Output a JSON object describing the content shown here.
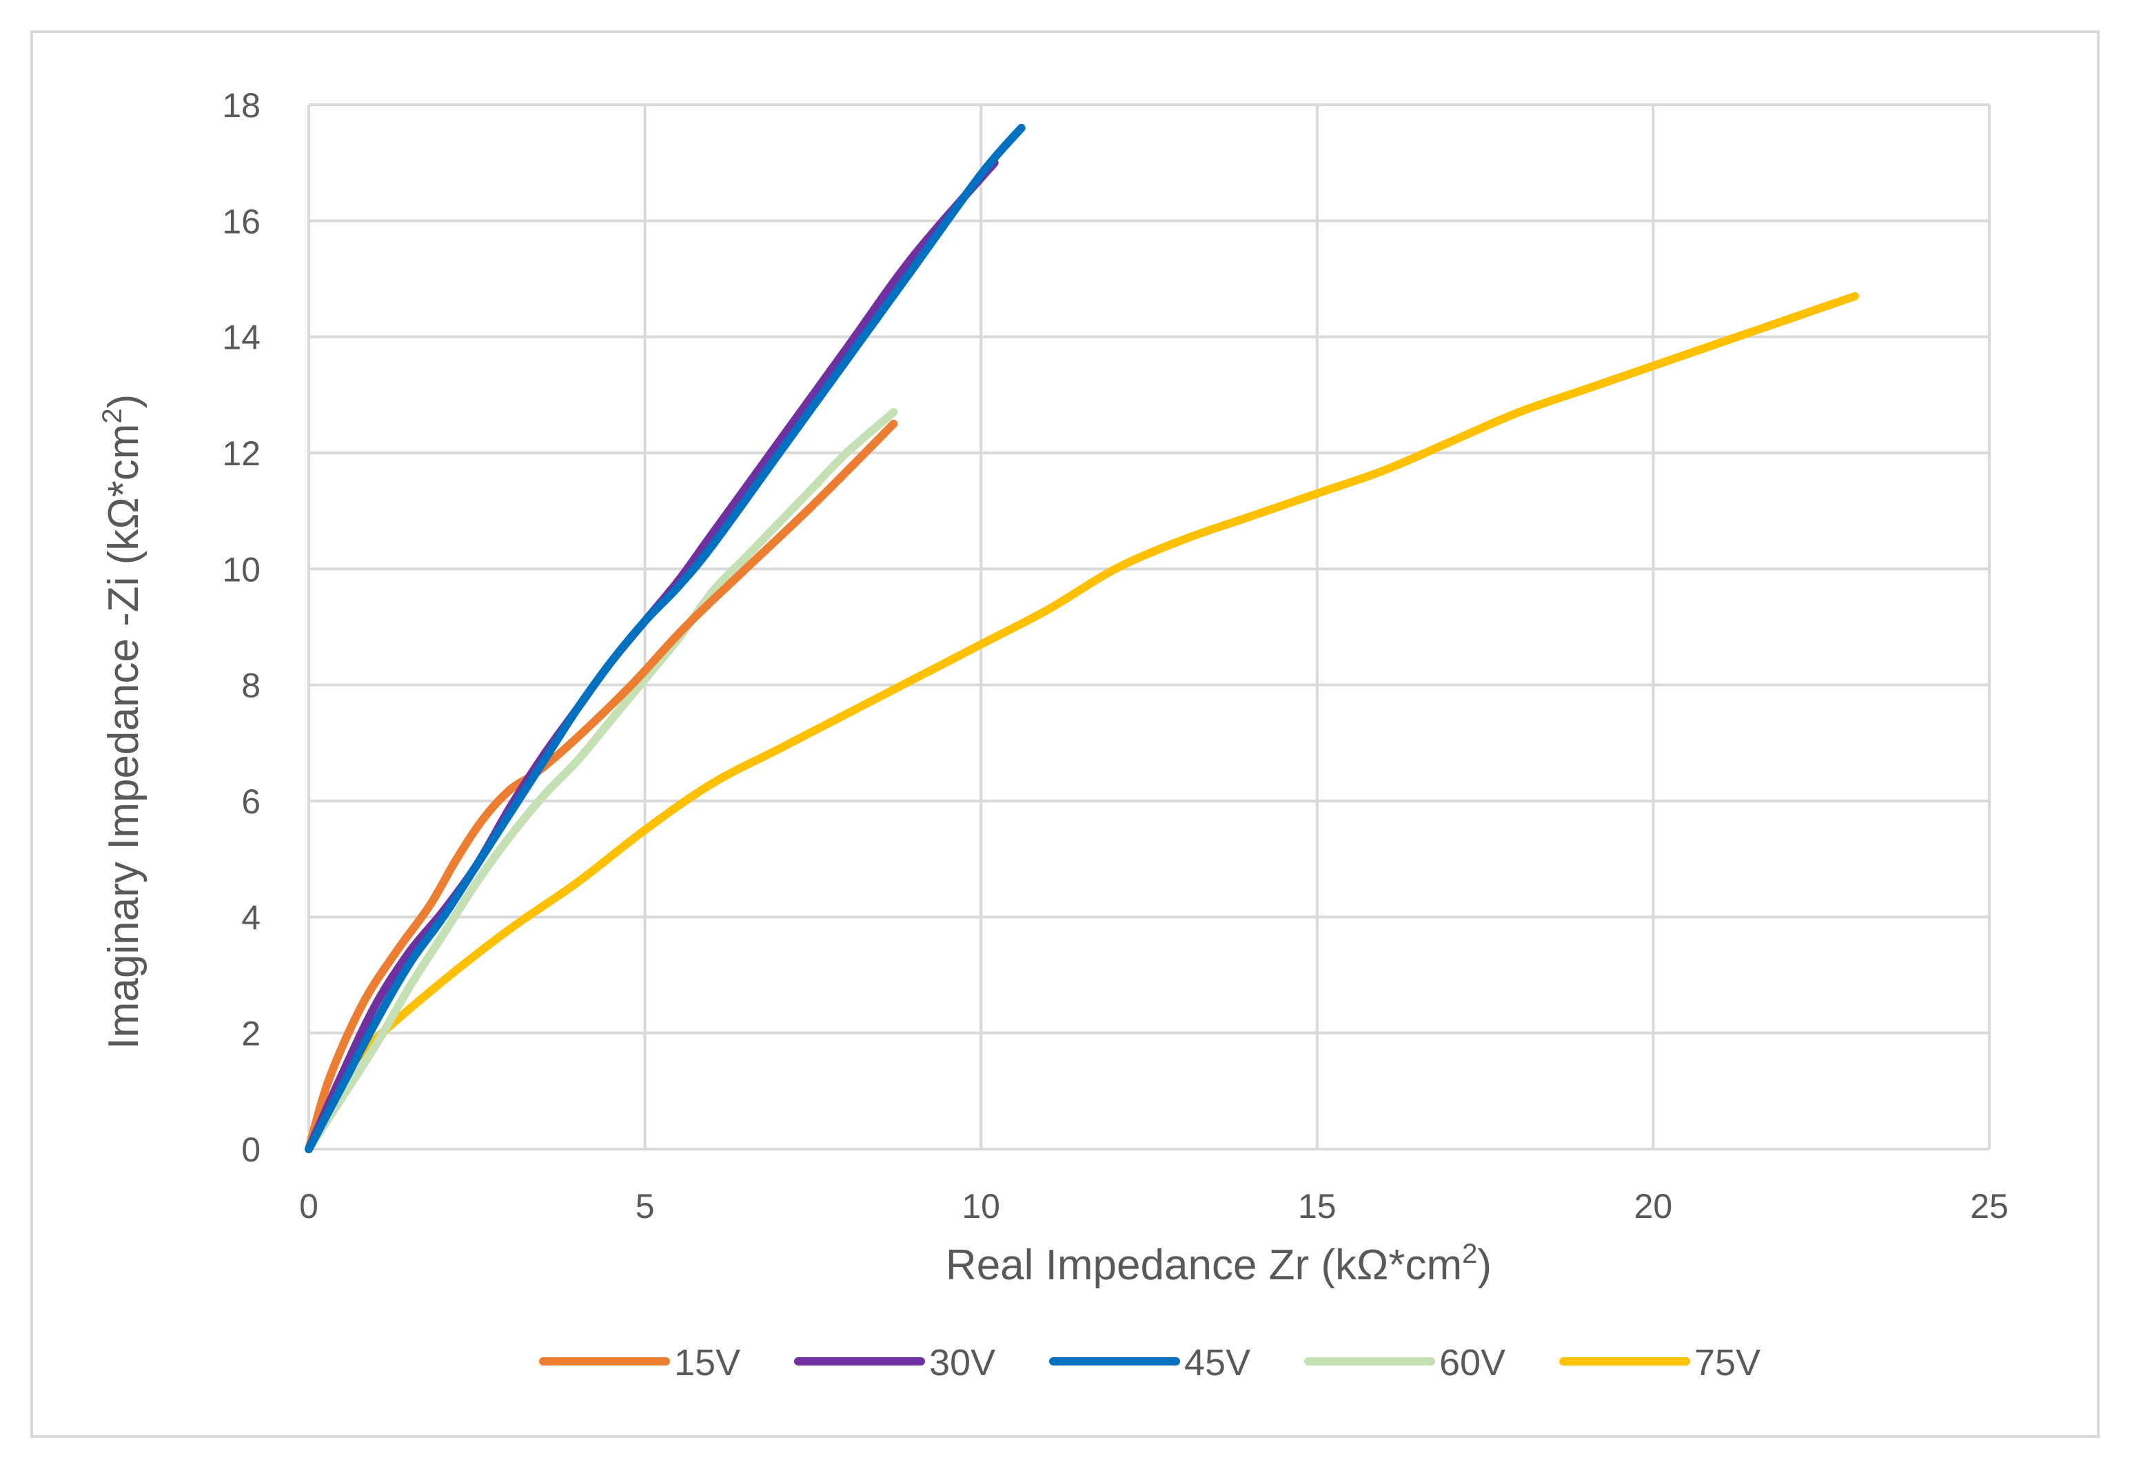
{
  "chart_data": {
    "type": "line",
    "title": "",
    "xlabel": "Real Impedance Zr (kΩ*cm",
    "xlabel_sup": "2",
    "xlabel_end": ")",
    "ylabel": "Imaginary Impedance -Zi (kΩ*cm",
    "ylabel_sup": "2",
    "ylabel_end": ")",
    "xlim": [
      0,
      25
    ],
    "ylim": [
      0,
      18
    ],
    "x_ticks": [
      0,
      5,
      10,
      15,
      20,
      25
    ],
    "y_ticks": [
      0,
      2,
      4,
      6,
      8,
      10,
      12,
      14,
      16,
      18
    ],
    "x_tick_labels": [
      "0",
      "5",
      "10",
      "15",
      "20",
      "25"
    ],
    "y_tick_labels": [
      "0",
      "2",
      "4",
      "6",
      "8",
      "10",
      "12",
      "14",
      "16",
      "18"
    ],
    "grid": true,
    "legend_position": "bottom",
    "series": [
      {
        "name": "15V",
        "color": "#ed7d31",
        "x": [
          0,
          0.3,
          0.8,
          1.3,
          1.8,
          2.2,
          2.6,
          3.0,
          3.4,
          4.0,
          4.8,
          5.6,
          6.5,
          7.5,
          8.7
        ],
        "y": [
          0,
          1.2,
          2.5,
          3.4,
          4.2,
          5.0,
          5.7,
          6.2,
          6.5,
          7.1,
          8.0,
          9.0,
          10.0,
          11.1,
          12.5
        ]
      },
      {
        "name": "30V",
        "color": "#7030a0",
        "x": [
          0,
          0.5,
          1.0,
          1.5,
          2.0,
          2.5,
          3.0,
          3.5,
          4.0,
          4.5,
          5.0,
          5.5,
          6.0,
          7.0,
          8.0,
          9.0,
          10.2
        ],
        "y": [
          0,
          1.3,
          2.5,
          3.4,
          4.1,
          4.9,
          5.9,
          6.8,
          7.6,
          8.4,
          9.1,
          9.8,
          10.6,
          12.2,
          13.8,
          15.4,
          17.0
        ]
      },
      {
        "name": "45V",
        "color": "#0070c0",
        "x": [
          0,
          0.5,
          1.0,
          1.5,
          2.0,
          2.5,
          3.0,
          3.5,
          4.0,
          4.5,
          5.0,
          5.5,
          6.0,
          7.0,
          8.0,
          9.0,
          10.0,
          10.6
        ],
        "y": [
          0,
          1.1,
          2.2,
          3.2,
          4.0,
          4.9,
          5.8,
          6.7,
          7.6,
          8.4,
          9.1,
          9.7,
          10.4,
          12.0,
          13.6,
          15.2,
          16.8,
          17.6
        ]
      },
      {
        "name": "60V",
        "color": "#c5e0b4",
        "x": [
          0,
          0.5,
          1.0,
          1.5,
          2.0,
          2.5,
          3.0,
          3.5,
          4.0,
          4.5,
          5.0,
          5.5,
          6.0,
          6.5,
          7.0,
          7.5,
          8.0,
          8.7
        ],
        "y": [
          0,
          0.9,
          1.8,
          2.8,
          3.7,
          4.6,
          5.4,
          6.1,
          6.7,
          7.4,
          8.1,
          8.8,
          9.6,
          10.2,
          10.8,
          11.4,
          12.0,
          12.7
        ]
      },
      {
        "name": "75V",
        "color": "#ffc000",
        "x": [
          0,
          0.5,
          1.0,
          2.0,
          3.0,
          4.0,
          5.0,
          6.0,
          7.0,
          8.0,
          9.0,
          10.0,
          11.0,
          12.0,
          13.0,
          14.0,
          15.0,
          16.0,
          17.0,
          18.0,
          19.0,
          20.0,
          21.0,
          22.0,
          23.0
        ],
        "y": [
          0,
          1.2,
          1.9,
          2.9,
          3.8,
          4.6,
          5.5,
          6.3,
          6.9,
          7.5,
          8.1,
          8.7,
          9.3,
          10.0,
          10.5,
          10.9,
          11.3,
          11.7,
          12.2,
          12.7,
          13.1,
          13.5,
          13.9,
          14.3,
          14.7
        ]
      }
    ]
  }
}
